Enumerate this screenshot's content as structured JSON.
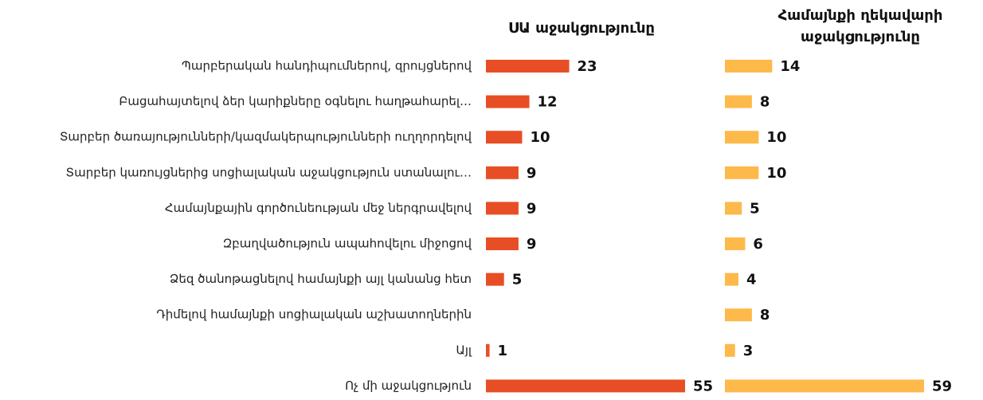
{
  "chart_data": {
    "type": "bar",
    "orientation": "horizontal",
    "categories": [
      "Պարբերական հանդիպումներով, զրույցներով",
      "Բացահայտելով ձեր կարիքները օգնելու հաղթահարել…",
      "Տարբեր ծառայությունների/կազմակերպությունների ուղղորդելով",
      "Տարբեր կառույցներից սոցիալական աջակցություն ստանալու…",
      "Համայնքային գործունեության մեջ ներգրավելով",
      "Զբաղվածություն ապահովելու միջոցով",
      "Ձեզ ծանոթացնելով համայնքի այլ կանանց հետ",
      "Դիմելով համայնքի սոցիալական աշխատողներին",
      "Այլ",
      "Ոչ մի աջակցություն"
    ],
    "series": [
      {
        "name": "ՍԱ աջակցությունը",
        "color": "#e84e25",
        "values": [
          23,
          12,
          10,
          9,
          9,
          9,
          5,
          null,
          1,
          55
        ]
      },
      {
        "name": "Համայնքի ղեկավարի աջակցությունը",
        "color": "#fdb94a",
        "values": [
          14,
          8,
          10,
          10,
          5,
          6,
          4,
          8,
          3,
          59
        ]
      }
    ]
  }
}
